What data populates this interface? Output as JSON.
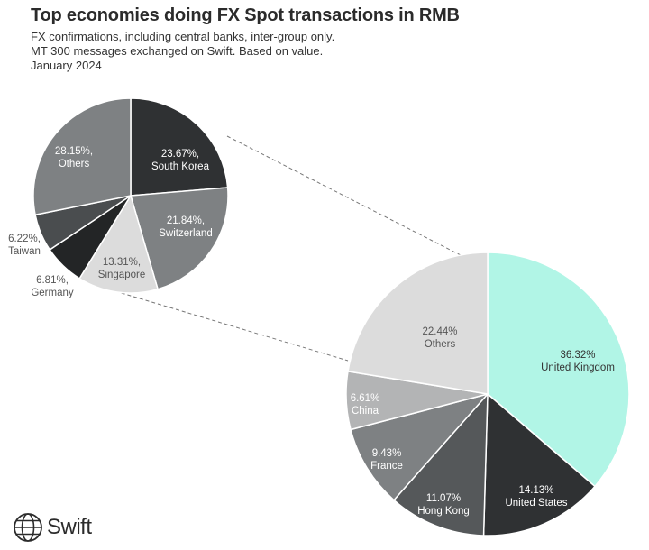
{
  "header": {
    "title": "Top economies doing FX Spot transactions in RMB",
    "subtitle_1": "FX confirmations, including central banks, inter-group only.",
    "subtitle_2": "MT 300 messages exchanged on Swift. Based on value.",
    "subtitle_3": "January 2024"
  },
  "brand": {
    "name": "Swift",
    "icon": "globe-icon"
  },
  "chart_data": [
    {
      "type": "pie",
      "name": "main",
      "slices": [
        {
          "label": "United Kingdom",
          "value": 36.32,
          "text": "36.32%",
          "color": "#b1f5e6",
          "text_color": "#333333"
        },
        {
          "label": "United States",
          "value": 14.13,
          "text": "14.13%",
          "color": "#2f3133",
          "text_color": "#ffffff"
        },
        {
          "label": "Hong Kong",
          "value": 11.07,
          "text": "11.07%",
          "color": "#55585a",
          "text_color": "#ffffff"
        },
        {
          "label": "France",
          "value": 9.43,
          "text": "9.43%",
          "color": "#7e8183",
          "text_color": "#ffffff"
        },
        {
          "label": "China",
          "value": 6.61,
          "text": "6.61%",
          "color": "#b3b4b5",
          "text_color": "#ffffff"
        },
        {
          "label": "Others",
          "value": 22.44,
          "text": "22.44%",
          "color": "#dcdcdc",
          "text_color": "#555555"
        }
      ]
    },
    {
      "type": "pie",
      "name": "others-breakdown",
      "slices": [
        {
          "label": "South Korea",
          "value": 23.67,
          "text": "23.67%,",
          "color": "#2f3133",
          "text_color": "#ffffff"
        },
        {
          "label": "Switzerland",
          "value": 21.84,
          "text": "21.84%,",
          "color": "#7e8183",
          "text_color": "#ffffff"
        },
        {
          "label": "Singapore",
          "value": 13.31,
          "text": "13.31%,",
          "color": "#dcdcdc",
          "text_color": "#555555"
        },
        {
          "label": "Germany",
          "value": 6.81,
          "text": "6.81%,",
          "color": "#232526",
          "text_color": "#555555",
          "outside": true
        },
        {
          "label": "Taiwan",
          "value": 6.22,
          "text": "6.22%,",
          "color": "#4a4d4f",
          "text_color": "#555555",
          "outside": true
        },
        {
          "label": "Others",
          "value": 28.15,
          "text": "28.15%,",
          "color": "#7e8183",
          "text_color": "#ffffff"
        }
      ]
    }
  ]
}
